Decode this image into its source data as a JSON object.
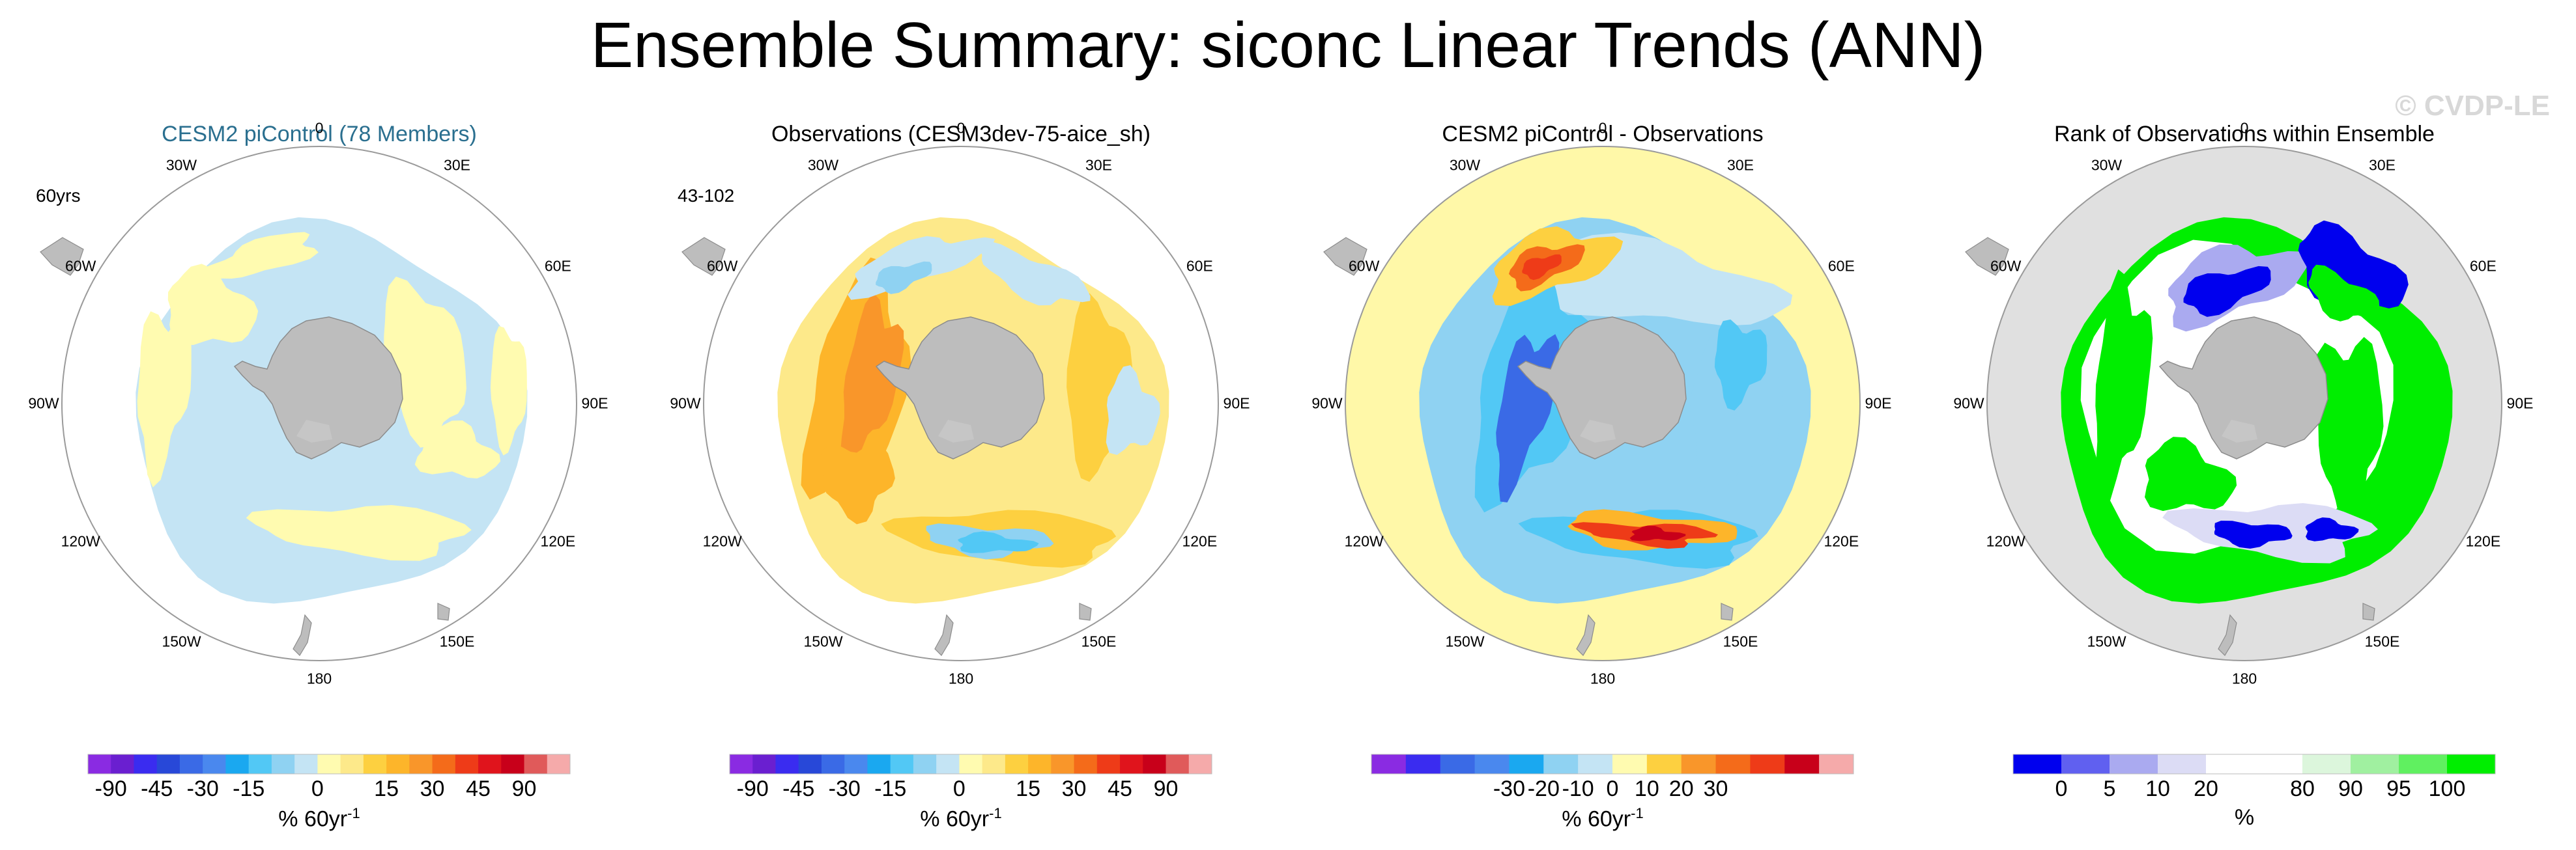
{
  "title": "Ensemble Summary: siconc Linear Trends (ANN)",
  "watermark": "© CVDP-LE",
  "panels": [
    {
      "title": "CESM2 piControl (78 Members)",
      "corner_label": "60yrs",
      "lon_labels": [
        "0",
        "30E",
        "60E",
        "90E",
        "120E",
        "150E",
        "180",
        "150W",
        "120W",
        "90W",
        "60W",
        "30W"
      ],
      "colorbar": {
        "colors": [
          "#8a2be2",
          "#6a1fd0",
          "#3a2cf0",
          "#2848d8",
          "#3a6ae6",
          "#4a88ee",
          "#1aa8f0",
          "#52c8f5",
          "#8fd2f2",
          "#c4e4f4",
          "#fffbb0",
          "#fde98a",
          "#fdd040",
          "#fdb52a",
          "#f9962a",
          "#f46b1a",
          "#ee3b18",
          "#e0141c",
          "#c8001a",
          "#e05a5a",
          "#f5aaaa"
        ],
        "tick_labels": [
          "-90",
          "-45",
          "-30",
          "-15",
          "0",
          "15",
          "30",
          "45",
          "90"
        ],
        "units": "% 60yr",
        "units_exp": "-1"
      }
    },
    {
      "title": "Observations (CESM3dev-75-aice_sh)",
      "corner_label": "43-102",
      "lon_labels": [
        "0",
        "30E",
        "60E",
        "90E",
        "120E",
        "150E",
        "180",
        "150W",
        "120W",
        "90W",
        "60W",
        "30W"
      ],
      "colorbar": {
        "colors": [
          "#8a2be2",
          "#6a1fd0",
          "#3a2cf0",
          "#2848d8",
          "#3a6ae6",
          "#4a88ee",
          "#1aa8f0",
          "#52c8f5",
          "#8fd2f2",
          "#c4e4f4",
          "#fffbb0",
          "#fde98a",
          "#fdd040",
          "#fdb52a",
          "#f9962a",
          "#f46b1a",
          "#ee3b18",
          "#e0141c",
          "#c8001a",
          "#e05a5a",
          "#f5aaaa"
        ],
        "tick_labels": [
          "-90",
          "-45",
          "-30",
          "-15",
          "0",
          "15",
          "30",
          "45",
          "90"
        ],
        "units": "% 60yr",
        "units_exp": "-1"
      }
    },
    {
      "title": "CESM2 piControl - Observations",
      "corner_label": "",
      "lon_labels": [
        "0",
        "30E",
        "60E",
        "90E",
        "120E",
        "150E",
        "180",
        "150W",
        "120W",
        "90W",
        "60W",
        "30W"
      ],
      "colorbar": {
        "colors": [
          "#8a2be2",
          "#3a2cf0",
          "#3a6ae6",
          "#4a88ee",
          "#1aa8f0",
          "#8fd2f2",
          "#c4e4f4",
          "#fffbb0",
          "#fdd040",
          "#f9962a",
          "#f46b1a",
          "#ee3b18",
          "#c8001a",
          "#f5aaaa"
        ],
        "tick_labels": [
          "-30",
          "-20",
          "-10",
          "0",
          "10",
          "20",
          "30"
        ],
        "units": "% 60yr",
        "units_exp": "-1"
      }
    },
    {
      "title": "Rank of Observations within Ensemble",
      "corner_label": "",
      "lon_labels": [
        "0",
        "30E",
        "60E",
        "90E",
        "120E",
        "150E",
        "180",
        "150W",
        "120W",
        "90W",
        "60W",
        "30W"
      ],
      "colorbar": {
        "colors": [
          "#0000ee",
          "#6060f0",
          "#aaaaf0",
          "#dcdcf5",
          "#ffffff",
          "#ffffff",
          "#dcf6dc",
          "#a0f0a0",
          "#60f060",
          "#00ee00"
        ],
        "tick_labels": [
          "0",
          "5",
          "10",
          "20",
          "80",
          "90",
          "95",
          "100"
        ],
        "units": "%",
        "units_exp": ""
      }
    }
  ]
}
